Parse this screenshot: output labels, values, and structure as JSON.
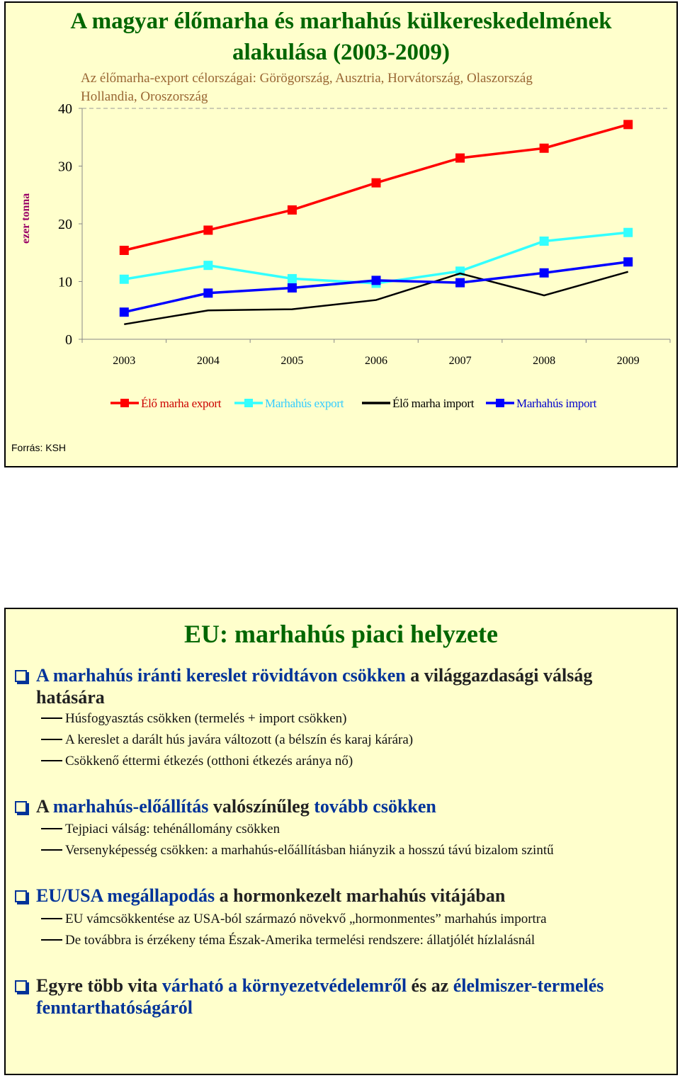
{
  "slide1": {
    "title_line1": "A magyar élőmarha és marhahús külkereskedelmének",
    "title_line2": "alakulása (2003-2009)",
    "subtitle_line1": "Az élőmarha-export célországai: Görögország, Ausztria, Horvátország, Olaszország",
    "subtitle_line2": "Hollandia, Oroszország",
    "source": "Forrás: KSH"
  },
  "chart_data": {
    "type": "line",
    "x": [
      "2003",
      "2004",
      "2005",
      "2006",
      "2007",
      "2008",
      "2009"
    ],
    "ylabel": "ezer tonna",
    "ylim": [
      0,
      40
    ],
    "yticks": [
      "0",
      "10",
      "20",
      "30",
      "40"
    ],
    "legend_position": "bottom",
    "series": [
      {
        "name": "Élő marha export",
        "color": "#ff0000",
        "marker": "square",
        "values": [
          15.4,
          18.9,
          22.4,
          27.1,
          31.4,
          33.1,
          37.2
        ]
      },
      {
        "name": "Marhahús export",
        "color": "#33ffff",
        "marker": "square",
        "values": [
          10.4,
          12.8,
          10.5,
          9.7,
          11.8,
          17.0,
          18.5
        ]
      },
      {
        "name": "Élő marha import",
        "color": "#000000",
        "marker": "none",
        "values": [
          2.6,
          5.0,
          5.2,
          6.8,
          11.4,
          7.6,
          11.7
        ]
      },
      {
        "name": "Marhahús import",
        "color": "#0000ff",
        "marker": "square",
        "values": [
          4.7,
          8.0,
          8.9,
          10.2,
          9.8,
          11.5,
          13.4
        ]
      }
    ]
  },
  "slide2": {
    "title": "EU: marhahús piaci helyzete",
    "b1_part1": "A marhahús iránti kereslet rövidtávon csökken",
    "b1_part2": " a világgazdasági válság",
    "b1_line2": "hatására",
    "b1_sub1": "Húsfogyasztás csökken (termelés + import csökken)",
    "b1_sub2": "A kereslet a darált hús javára változott (a bélszín és karaj kárára)",
    "b1_sub3": "Csökkenő éttermi étkezés (otthoni étkezés aránya nő)",
    "b2_part1": "A ",
    "b2_part2": "marhahús-előállítás",
    "b2_part3": " valószínűleg ",
    "b2_part4": "tovább  csökken",
    "b2_sub1": "Tejpiaci válság: tehénállomány csökken",
    "b2_sub2": "Versenyképesség csökken: a marhahús-előállításban hiányzik a hosszú távú bizalom szintű",
    "b3_part1": "EU/USA megállapodás",
    "b3_part2": " a hormonkezelt marhahús vitájában",
    "b3_sub1": "EU vámcsökkentése az USA-ból származó növekvő „hormonmentes” marhahús importra",
    "b3_sub2": "De továbbra is érzékeny téma Észak-Amerika termelési rendszere: állatjólét hízlalásnál",
    "b4_part1": "Egyre több vita ",
    "b4_part2": "várható a környezetvédelemről",
    "b4_part3": " és az ",
    "b4_part4": "élelmiszer-termelés",
    "b4_line2": "fenntarthatóságáról"
  }
}
